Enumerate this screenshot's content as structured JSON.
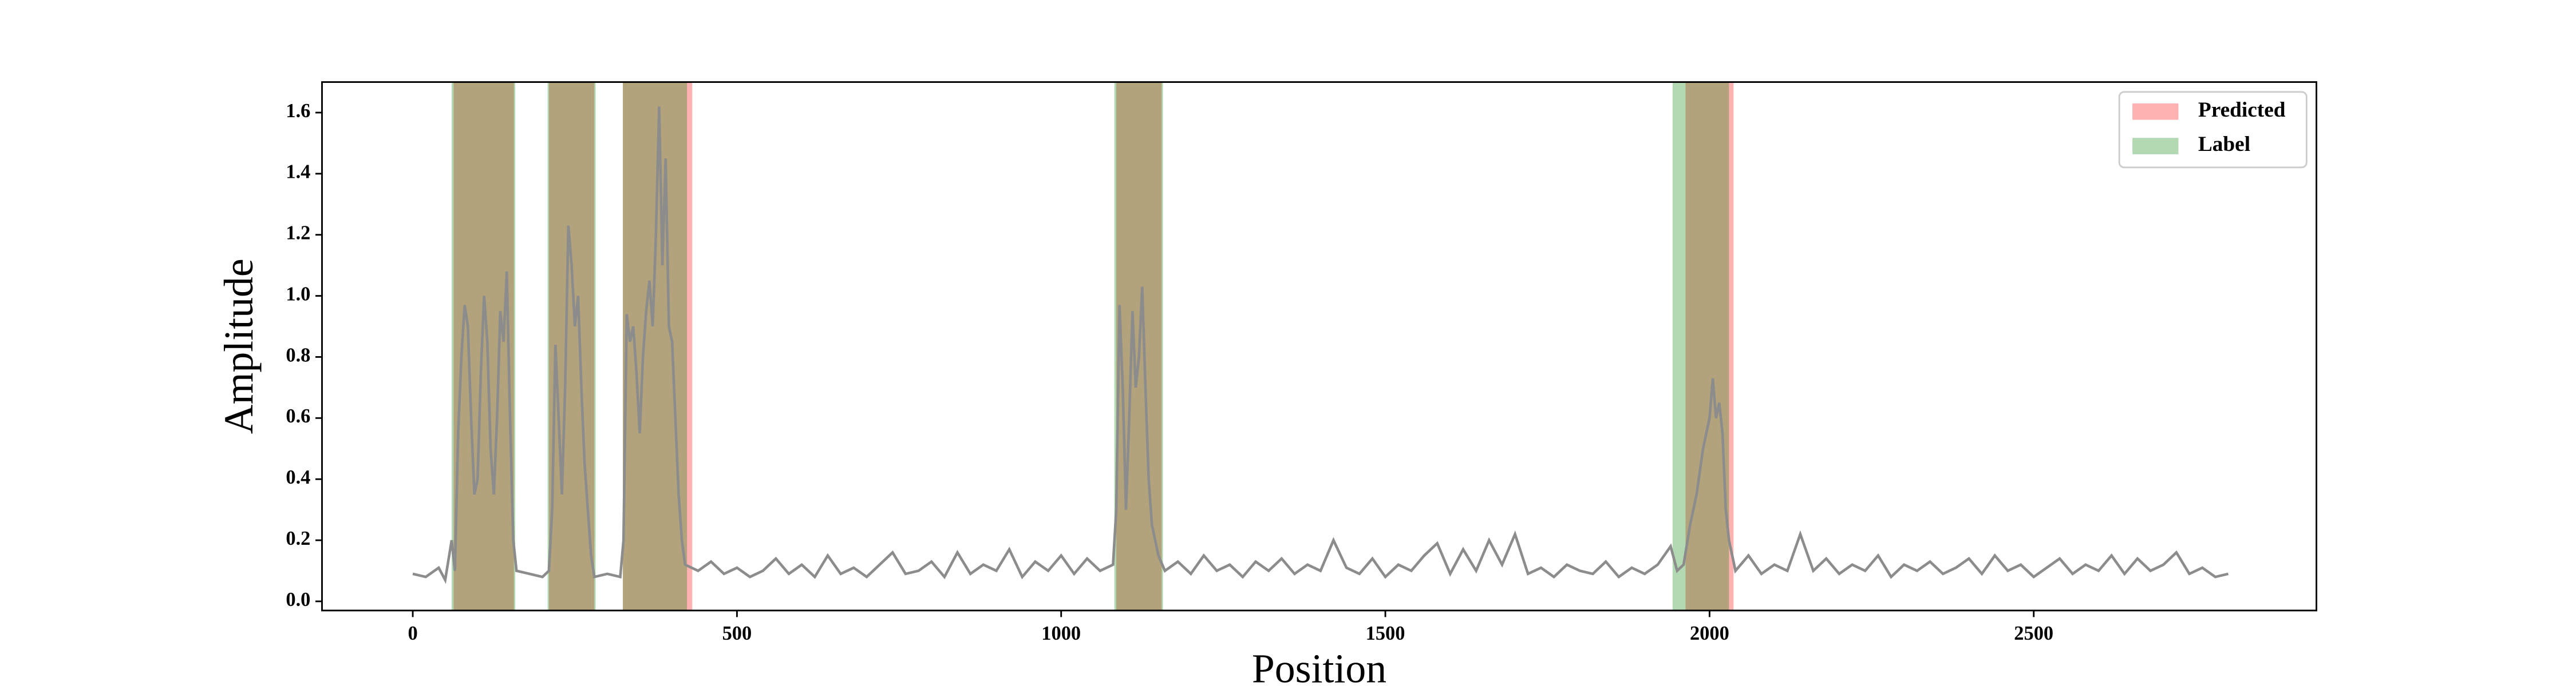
{
  "chart_data": {
    "type": "line",
    "x_label": "Position",
    "y_label": "Amplitude",
    "xlim": [
      -140,
      2936
    ],
    "ylim": [
      -0.03,
      1.7
    ],
    "xticks": [
      0,
      500,
      1000,
      1500,
      2000,
      2500
    ],
    "yticks": [
      {
        "value": 0,
        "label": "0.0"
      },
      {
        "value": 0.2,
        "label": "0.2"
      },
      {
        "value": 0.4,
        "label": "0.4"
      },
      {
        "value": 0.6,
        "label": "0.6"
      },
      {
        "value": 0.8,
        "label": "0.8"
      },
      {
        "value": 1,
        "label": "1.0"
      },
      {
        "value": 1.2,
        "label": "1.2"
      },
      {
        "value": 1.4,
        "label": "1.4"
      },
      {
        "value": 1.6,
        "label": "1.6"
      }
    ],
    "legend": "upper right",
    "region_alpha": 0.3,
    "regions": [
      {
        "name": "Predicted",
        "color": "red",
        "spans": [
          [
            63,
            156
          ],
          [
            210,
            280
          ],
          [
            324,
            431
          ],
          [
            1085,
            1155
          ],
          [
            1963,
            2037
          ]
        ]
      },
      {
        "name": "Label",
        "color": "green",
        "spans": [
          [
            60,
            158
          ],
          [
            208,
            282
          ],
          [
            324,
            423
          ],
          [
            1082,
            1157
          ],
          [
            1943,
            2030
          ]
        ]
      }
    ],
    "x": [
      0,
      20,
      40,
      50,
      60,
      65,
      70,
      75,
      80,
      85,
      90,
      95,
      100,
      105,
      110,
      115,
      120,
      125,
      130,
      135,
      140,
      145,
      150,
      155,
      160,
      180,
      200,
      210,
      215,
      220,
      225,
      230,
      235,
      240,
      245,
      250,
      255,
      260,
      265,
      270,
      275,
      280,
      300,
      320,
      325,
      330,
      335,
      340,
      345,
      350,
      355,
      360,
      365,
      370,
      375,
      380,
      385,
      390,
      395,
      400,
      405,
      410,
      415,
      420,
      440,
      460,
      480,
      500,
      520,
      540,
      560,
      580,
      600,
      620,
      640,
      660,
      680,
      700,
      720,
      740,
      760,
      780,
      800,
      820,
      840,
      860,
      880,
      900,
      920,
      940,
      960,
      980,
      1000,
      1020,
      1040,
      1060,
      1080,
      1085,
      1090,
      1095,
      1100,
      1105,
      1110,
      1115,
      1120,
      1125,
      1130,
      1135,
      1140,
      1150,
      1160,
      1180,
      1200,
      1220,
      1240,
      1260,
      1280,
      1300,
      1320,
      1340,
      1360,
      1380,
      1400,
      1420,
      1440,
      1460,
      1480,
      1500,
      1520,
      1540,
      1560,
      1580,
      1600,
      1620,
      1640,
      1660,
      1680,
      1700,
      1720,
      1740,
      1760,
      1780,
      1800,
      1820,
      1840,
      1860,
      1880,
      1900,
      1920,
      1940,
      1950,
      1960,
      1970,
      1980,
      1990,
      2000,
      2005,
      2010,
      2015,
      2020,
      2025,
      2030,
      2040,
      2060,
      2080,
      2100,
      2120,
      2140,
      2160,
      2180,
      2200,
      2220,
      2240,
      2260,
      2280,
      2300,
      2320,
      2340,
      2360,
      2380,
      2400,
      2420,
      2440,
      2460,
      2480,
      2500,
      2520,
      2540,
      2560,
      2580,
      2600,
      2620,
      2640,
      2660,
      2680,
      2700,
      2720,
      2740,
      2760,
      2780,
      2800
    ],
    "series": [
      {
        "color": "#8c8c8c",
        "values": [
          0.09,
          0.08,
          0.11,
          0.07,
          0.2,
          0.1,
          0.55,
          0.8,
          0.97,
          0.9,
          0.6,
          0.35,
          0.4,
          0.75,
          1.0,
          0.85,
          0.5,
          0.35,
          0.6,
          0.95,
          0.85,
          1.08,
          0.6,
          0.2,
          0.1,
          0.09,
          0.08,
          0.1,
          0.3,
          0.84,
          0.6,
          0.35,
          0.7,
          1.23,
          1.1,
          0.9,
          1.0,
          0.7,
          0.45,
          0.3,
          0.15,
          0.08,
          0.09,
          0.08,
          0.2,
          0.94,
          0.85,
          0.9,
          0.75,
          0.55,
          0.8,
          0.95,
          1.05,
          0.9,
          1.2,
          1.62,
          1.1,
          1.45,
          0.9,
          0.85,
          0.6,
          0.35,
          0.2,
          0.12,
          0.1,
          0.13,
          0.09,
          0.11,
          0.08,
          0.1,
          0.14,
          0.09,
          0.12,
          0.08,
          0.15,
          0.09,
          0.11,
          0.08,
          0.12,
          0.16,
          0.09,
          0.1,
          0.13,
          0.08,
          0.16,
          0.09,
          0.12,
          0.1,
          0.17,
          0.08,
          0.13,
          0.1,
          0.15,
          0.09,
          0.14,
          0.1,
          0.12,
          0.3,
          0.97,
          0.7,
          0.3,
          0.6,
          0.95,
          0.7,
          0.8,
          1.03,
          0.7,
          0.4,
          0.25,
          0.15,
          0.1,
          0.13,
          0.09,
          0.15,
          0.1,
          0.12,
          0.08,
          0.13,
          0.1,
          0.14,
          0.09,
          0.12,
          0.1,
          0.2,
          0.11,
          0.09,
          0.14,
          0.08,
          0.12,
          0.1,
          0.15,
          0.19,
          0.09,
          0.17,
          0.1,
          0.2,
          0.12,
          0.22,
          0.09,
          0.11,
          0.08,
          0.12,
          0.1,
          0.09,
          0.13,
          0.08,
          0.11,
          0.09,
          0.12,
          0.18,
          0.1,
          0.12,
          0.25,
          0.35,
          0.5,
          0.6,
          0.73,
          0.6,
          0.65,
          0.55,
          0.3,
          0.2,
          0.1,
          0.15,
          0.09,
          0.12,
          0.1,
          0.22,
          0.1,
          0.14,
          0.09,
          0.12,
          0.1,
          0.15,
          0.08,
          0.12,
          0.1,
          0.13,
          0.09,
          0.11,
          0.14,
          0.09,
          0.15,
          0.1,
          0.12,
          0.08,
          0.11,
          0.14,
          0.09,
          0.12,
          0.1,
          0.15,
          0.09,
          0.14,
          0.1,
          0.12,
          0.16,
          0.09,
          0.11,
          0.08,
          0.09
        ]
      }
    ]
  }
}
